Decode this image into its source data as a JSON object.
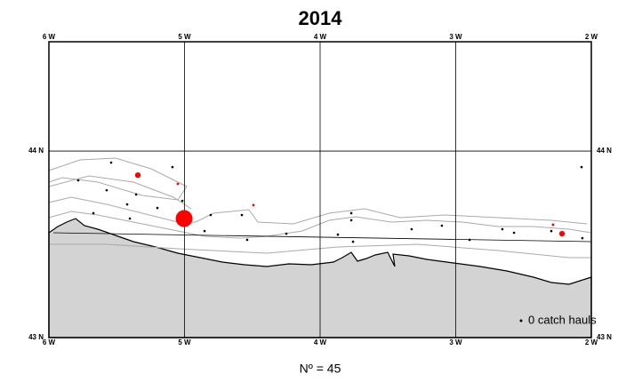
{
  "map": {
    "title": "2014",
    "xlim": [
      -6,
      -2
    ],
    "ylim": [
      43,
      44.586
    ],
    "xticks": [
      {
        "value": -6,
        "label": "6 W"
      },
      {
        "value": -5,
        "label": "5 W"
      },
      {
        "value": -4,
        "label": "4 W"
      },
      {
        "value": -3,
        "label": "3 W"
      },
      {
        "value": -2,
        "label": "2 W"
      }
    ],
    "yticks": [
      {
        "value": 44,
        "label": "44 N"
      },
      {
        "value": 43,
        "label": "43 N"
      }
    ],
    "grid": true,
    "zero_color": "#000000",
    "catch_color": "#ff0000",
    "legend": "0 catch hauls",
    "footer": "Nº = 45",
    "zero_hauls": {
      "lon": [
        -5.541,
        -5.784,
        -5.574,
        -5.357,
        -5.089,
        -5.423,
        -5.672,
        -5.2,
        -5.403,
        -4.852,
        -5.016,
        -4.577,
        -4.538,
        -4.249,
        -3.869,
        -3.77,
        -3.77,
        -3.757,
        -3.325,
        -3.102,
        -2.898,
        -2.656,
        -2.57,
        -2.066,
        -2.072,
        -4.807,
        -2.295
      ],
      "lat": [
        43.938,
        43.843,
        43.79,
        43.767,
        43.914,
        43.714,
        43.667,
        43.695,
        43.638,
        43.571,
        43.733,
        43.657,
        43.524,
        43.557,
        43.552,
        43.667,
        43.629,
        43.514,
        43.581,
        43.6,
        43.524,
        43.581,
        43.562,
        43.533,
        43.914,
        43.657,
        43.571
      ]
    },
    "catch_hauls": {
      "lon": [
        -5.344,
        -5.003,
        -5.049,
        -4.492,
        -2.216,
        -2.282
      ],
      "lat": [
        43.871,
        43.638,
        43.824,
        43.71,
        43.557,
        43.605
      ],
      "catch": [
        10,
        90,
        2,
        2,
        10,
        2
      ]
    }
  }
}
